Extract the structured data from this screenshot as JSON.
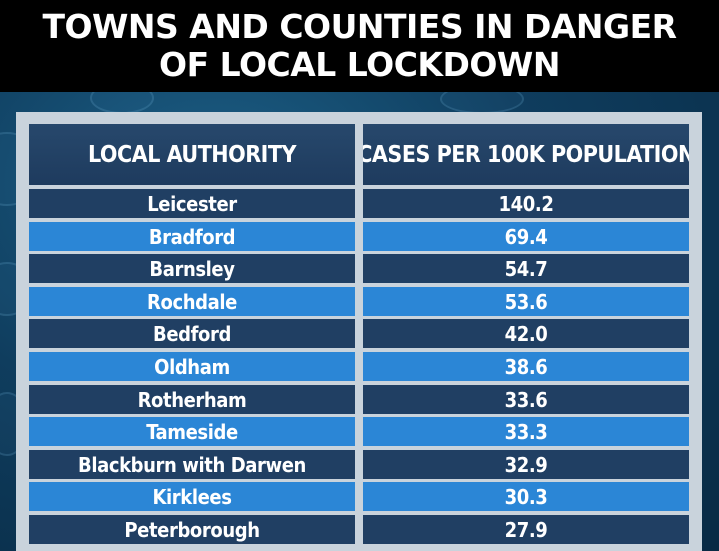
{
  "title": {
    "line1": "TOWNS AND COUNTIES IN DANGER",
    "line2": "OF LOCAL LOCKDOWN"
  },
  "colors": {
    "header": "#1e3b5e",
    "row_dark": "#203f63",
    "row_light": "#2b86d6",
    "background": "#0f3d5e"
  },
  "chart_data": {
    "type": "table",
    "columns": [
      "LOCAL AUTHORITY",
      "CASES PER 100K POPULATION"
    ],
    "rows": [
      {
        "authority": "Leicester",
        "cases": "140.2"
      },
      {
        "authority": "Bradford",
        "cases": "69.4"
      },
      {
        "authority": "Barnsley",
        "cases": "54.7"
      },
      {
        "authority": "Rochdale",
        "cases": "53.6"
      },
      {
        "authority": "Bedford",
        "cases": "42.0"
      },
      {
        "authority": "Oldham",
        "cases": "38.6"
      },
      {
        "authority": "Rotherham",
        "cases": "33.6"
      },
      {
        "authority": "Tameside",
        "cases": "33.3"
      },
      {
        "authority": "Blackburn with Darwen",
        "cases": "32.9"
      },
      {
        "authority": "Kirklees",
        "cases": "30.3"
      },
      {
        "authority": "Peterborough",
        "cases": "27.9"
      }
    ]
  }
}
